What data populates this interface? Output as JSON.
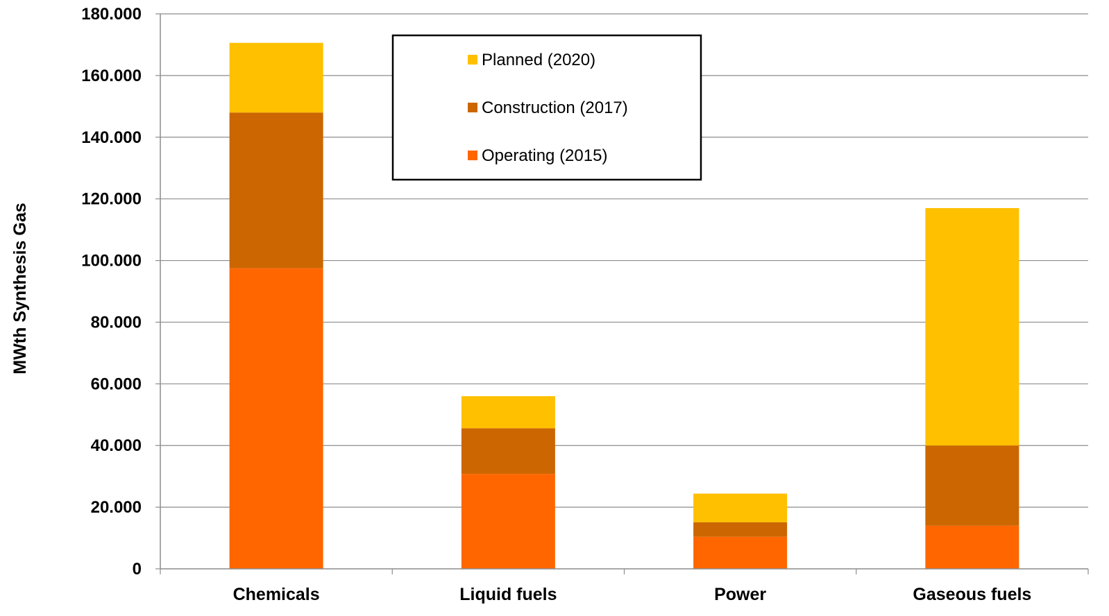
{
  "chart_data": {
    "type": "bar",
    "stacked": true,
    "categories": [
      "Chemicals",
      "Liquid fuels",
      "Power",
      "Gaseous fuels"
    ],
    "series": [
      {
        "name": "Operating (2015)",
        "color": "#FF6600",
        "values": [
          97500,
          30800,
          10400,
          14000
        ]
      },
      {
        "name": "Construction (2017)",
        "color": "#CC6600",
        "values": [
          50500,
          14800,
          4700,
          26000
        ]
      },
      {
        "name": "Planned (2020)",
        "color": "#FFC000",
        "values": [
          22600,
          10400,
          9300,
          77000
        ]
      }
    ],
    "title": "",
    "xlabel": "",
    "ylabel": "MWth Synthesis Gas",
    "ylim": [
      0,
      180000
    ],
    "yticks": [
      0,
      20000,
      40000,
      60000,
      80000,
      100000,
      120000,
      140000,
      160000,
      180000
    ],
    "ytick_labels": [
      "0",
      "20.000",
      "40.000",
      "60.000",
      "80.000",
      "100.000",
      "120.000",
      "140.000",
      "160.000",
      "180.000"
    ],
    "grid": true,
    "legend_position": "top-center",
    "legend_order": [
      "Planned (2020)",
      "Construction (2017)",
      "Operating (2015)"
    ]
  }
}
